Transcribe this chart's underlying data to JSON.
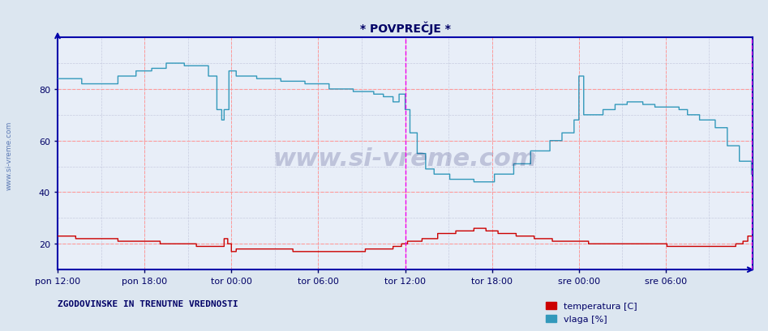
{
  "title": "* POVPREČJE *",
  "bg_color": "#dce6f0",
  "plot_bg_color": "#e8eef8",
  "grid_color_major": "#ff9999",
  "grid_color_minor": "#c8cce0",
  "ylabel_color": "#000066",
  "xlabel_color": "#000066",
  "title_color": "#000066",
  "x_ticks_labels": [
    "pon 12:00",
    "pon 18:00",
    "tor 00:00",
    "tor 06:00",
    "tor 12:00",
    "tor 18:00",
    "sre 00:00",
    "sre 06:00"
  ],
  "x_ticks_pos": [
    0,
    72,
    144,
    216,
    288,
    360,
    432,
    504
  ],
  "ylim": [
    10,
    100
  ],
  "xlim": [
    0,
    576
  ],
  "yticks": [
    20,
    40,
    60,
    80
  ],
  "vline_positions": [
    288,
    575
  ],
  "vline_color": "#ee00ee",
  "temp_color": "#cc0000",
  "humid_color": "#3399bb",
  "watermark": "www.si-vreme.com",
  "watermark_color": "#000055",
  "legend_label1": "temperatura [C]",
  "legend_label2": "vlaga [%]",
  "legend_color1": "#cc0000",
  "legend_color2": "#3399bb",
  "footer_text": "ZGODOVINSKE IN TRENUTNE VREDNOSTI",
  "footer_color": "#000066",
  "axis_color": "#0000aa",
  "n_points": 576
}
